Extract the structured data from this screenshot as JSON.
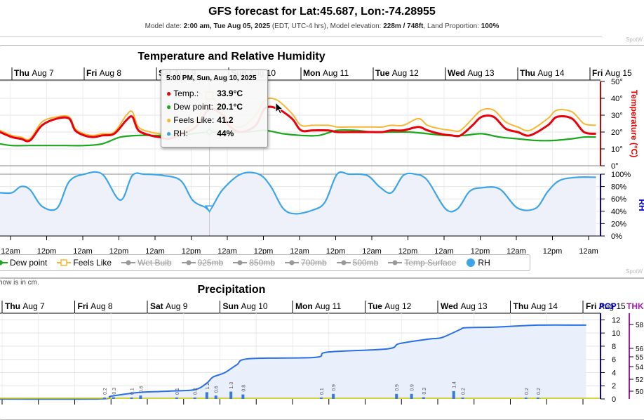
{
  "header": {
    "title": "GFS forecast for Lat:45.687, Lon:-74.28955",
    "model_date_label": "Model date:",
    "model_date": "2:00 am, Tue Aug 05, 2025",
    "tz": "(EDT, UTC-4 hrs), Model elevation:",
    "elevation": "228m / 748ft",
    "land_label": ", Land Proportion:",
    "land": "100%",
    "credit": "SpotW"
  },
  "colors": {
    "temp": "#e8000b",
    "dew": "#1ca81c",
    "feels": "#f7b733",
    "rh": "#3ba5e8",
    "precip_bar": "#3a78e0",
    "precip_line": "#2a6ee8",
    "thk": "#a020a0"
  },
  "chart_data": [
    {
      "type": "line",
      "title": "Temperature and Relative Humidity",
      "day_labels": [
        {
          "dow": "Thu",
          "date": "Aug 7"
        },
        {
          "dow": "Fri",
          "date": "Aug 8"
        },
        {
          "dow": "Sat",
          "date": "Aug 9"
        },
        {
          "dow": "Sun",
          "date": "Aug 10"
        },
        {
          "dow": "Mon",
          "date": "Aug 11"
        },
        {
          "dow": "Tue",
          "date": "Aug 12"
        },
        {
          "dow": "Wed",
          "date": "Aug 13"
        },
        {
          "dow": "Thu",
          "date": "Aug 14"
        },
        {
          "dow": "Fri",
          "date": "Aug 15"
        }
      ],
      "time_ticks": [
        "12am",
        "12pm",
        "12am",
        "12pm",
        "12am",
        "12pm",
        "12am",
        "12pm",
        "12am",
        "12pm",
        "12am",
        "12pm",
        "12am",
        "12pm",
        "12am",
        "12pm",
        "12am"
      ],
      "temp_axis": {
        "label": "Temperature (°C)",
        "ticks": [
          "0°",
          "10°",
          "20°",
          "30°",
          "40°",
          "50°"
        ],
        "ylim": [
          0,
          50
        ]
      },
      "rh_axis": {
        "label": "RH",
        "ticks": [
          "0%",
          "20%",
          "40%",
          "60%",
          "80%",
          "100%"
        ],
        "ylim": [
          0,
          100
        ]
      },
      "x_range_hours": [
        44,
        242
      ],
      "series": [
        {
          "name": "Temp.",
          "key": "temp",
          "x": [
            44,
            48,
            51,
            54,
            58,
            63,
            67,
            69,
            72,
            75,
            78,
            82,
            86,
            88,
            90,
            94,
            97,
            100,
            105,
            109,
            111,
            114,
            118,
            120,
            124,
            129,
            132,
            136,
            141,
            144,
            148,
            153,
            156,
            160,
            165,
            168,
            171,
            174,
            178,
            183,
            186,
            190,
            194,
            197,
            201,
            204,
            208,
            212,
            216,
            220,
            226,
            229,
            234,
            238,
            242
          ],
          "y": [
            20,
            17,
            16,
            15,
            24,
            28,
            28,
            21,
            18,
            17,
            18,
            19,
            27,
            29,
            21,
            18,
            17,
            16,
            19,
            23,
            28,
            33.9,
            30,
            24,
            20,
            24,
            34,
            34,
            28,
            21,
            21,
            21,
            20,
            20,
            20,
            20,
            20,
            21,
            21,
            23,
            21,
            19,
            18,
            18,
            24,
            29,
            29,
            22,
            20,
            18,
            24,
            29,
            28,
            20,
            19
          ]
        },
        {
          "name": "Dew point",
          "key": "dew",
          "x": [
            44,
            48,
            54,
            60,
            66,
            72,
            78,
            84,
            90,
            96,
            102,
            108,
            114,
            120,
            126,
            132,
            138,
            144,
            150,
            156,
            162,
            168,
            174,
            180,
            186,
            192,
            198,
            204,
            210,
            216,
            222,
            228,
            234,
            238,
            242
          ],
          "y": [
            13,
            12,
            12,
            12,
            12,
            12,
            13,
            17,
            18,
            18,
            18,
            19,
            20.1,
            20,
            20,
            21,
            19,
            18,
            18,
            21,
            21,
            20,
            20,
            20,
            19,
            18,
            18,
            19,
            17,
            16,
            15,
            15,
            16,
            17,
            17
          ]
        },
        {
          "name": "Feels Like",
          "key": "feels",
          "x": [
            44,
            48,
            51,
            54,
            58,
            63,
            67,
            69,
            72,
            75,
            78,
            82,
            86,
            88,
            90,
            94,
            97,
            100,
            105,
            109,
            111,
            114,
            118,
            120,
            124,
            129,
            132,
            136,
            141,
            144,
            148,
            153,
            156,
            160,
            165,
            168,
            171,
            174,
            178,
            183,
            186,
            190,
            194,
            197,
            201,
            204,
            208,
            212,
            216,
            220,
            226,
            229,
            234,
            238,
            242
          ],
          "y": [
            21,
            18,
            17,
            16,
            26,
            29,
            29,
            22,
            19,
            18,
            19,
            20,
            30,
            32,
            23,
            20,
            19,
            18,
            21,
            26,
            32,
            41.2,
            33,
            26,
            23,
            30,
            39,
            39,
            31,
            24,
            24,
            24,
            23,
            23,
            23,
            23,
            23,
            24,
            24,
            28,
            24,
            22,
            21,
            21,
            28,
            33,
            33,
            26,
            23,
            21,
            28,
            33,
            32,
            25,
            24
          ]
        },
        {
          "name": "RH",
          "key": "rh",
          "x": [
            44,
            48,
            51,
            54,
            58,
            63,
            67,
            72,
            78,
            84,
            88,
            92,
            98,
            104,
            108,
            112,
            114,
            118,
            124,
            130,
            134,
            138,
            142,
            148,
            152,
            156,
            160,
            166,
            170,
            174,
            178,
            182,
            186,
            192,
            196,
            200,
            204,
            210,
            216,
            222,
            226,
            230,
            236,
            242
          ],
          "y": [
            70,
            70,
            80,
            75,
            48,
            45,
            88,
            100,
            100,
            58,
            98,
            100,
            98,
            90,
            58,
            47,
            44,
            75,
            100,
            100,
            80,
            45,
            36,
            42,
            55,
            100,
            100,
            98,
            80,
            70,
            98,
            100,
            90,
            44,
            44,
            72,
            78,
            76,
            45,
            45,
            72,
            90,
            95,
            95
          ]
        }
      ],
      "tooltip": {
        "time": "5:00 PM, Sun, Aug 10, 2025",
        "temp": "33.9°C",
        "dew": "20.1°C",
        "feels": "41.2",
        "rh": "44%",
        "temp_label": "Temp.:",
        "dew_label": "Dew point:",
        "feels_label": "Feels Like:",
        "rh_label": "RH:"
      },
      "legend": [
        {
          "label": "Dew point",
          "on": true,
          "sym": "dew"
        },
        {
          "label": "Feels Like",
          "on": true,
          "sym": "feels"
        },
        {
          "label": "Wet Bulb",
          "on": false
        },
        {
          "label": "925mb",
          "on": false
        },
        {
          "label": "850mb",
          "on": false
        },
        {
          "label": "700mb",
          "on": false
        },
        {
          "label": "500mb",
          "on": false
        },
        {
          "label": "Temp Surface",
          "on": false
        },
        {
          "label": "RH",
          "on": true,
          "sym": "rh"
        }
      ],
      "credit": "SpotW"
    },
    {
      "type": "bar",
      "title": "Precipitation",
      "note": "how is in cm.",
      "day_labels": [
        {
          "dow": "Thu",
          "date": "Aug 7"
        },
        {
          "dow": "Fri",
          "date": "Aug 8"
        },
        {
          "dow": "Sat",
          "date": "Aug 9"
        },
        {
          "dow": "Sun",
          "date": "Aug 10"
        },
        {
          "dow": "Mon",
          "date": "Aug 11"
        },
        {
          "dow": "Tue",
          "date": "Aug 12"
        },
        {
          "dow": "Wed",
          "date": "Aug 13"
        },
        {
          "dow": "Thu",
          "date": "Aug 14"
        },
        {
          "dow": "Fri",
          "date": "Aug 15"
        }
      ],
      "pcp_axis": {
        "label": "PCP",
        "ticks": [
          "0",
          "2",
          "4",
          "6",
          "8",
          "10",
          "12"
        ],
        "ylim": [
          0,
          13
        ]
      },
      "thk_axis": {
        "label": "THK",
        "ticks": [
          "50",
          "52",
          "54",
          "55",
          "56",
          "58"
        ]
      },
      "bars": {
        "x": [
          82,
          85,
          91,
          94,
          106,
          112,
          116,
          119,
          124,
          128,
          154,
          158,
          179,
          184,
          188,
          198,
          201,
          222,
          226
        ],
        "y": [
          0.2,
          0.3,
          0.1,
          0.6,
          0.1,
          0.2,
          1.2,
          0.6,
          1.3,
          0.8,
          0.1,
          0.9,
          0.9,
          0.9,
          0.3,
          1.4,
          0.2,
          0.2,
          0.2
        ],
        "labels": [
          "0.2",
          "0.3",
          "0.1",
          "0.6",
          "0.1",
          "0.2",
          "1.2",
          "0.6",
          "1.3",
          "0.8",
          "0.1",
          "0.9",
          "0.9",
          "0.9",
          "0.3",
          "1.4",
          "0.2",
          "0.2",
          "0.2"
        ]
      },
      "cumulative": {
        "x": [
          44,
          80,
          84,
          90,
          94,
          104,
          112,
          116,
          118,
          122,
          126,
          130,
          152,
          156,
          176,
          180,
          190,
          194,
          200,
          202,
          212,
          226,
          242
        ],
        "y": [
          0,
          0,
          0.4,
          0.8,
          1,
          1.2,
          1.4,
          2.4,
          3.3,
          4,
          5.2,
          6.1,
          6.3,
          7.1,
          7.6,
          8.4,
          9.1,
          9.3,
          10.5,
          10.8,
          10.9,
          11.2,
          11.2
        ]
      }
    }
  ]
}
